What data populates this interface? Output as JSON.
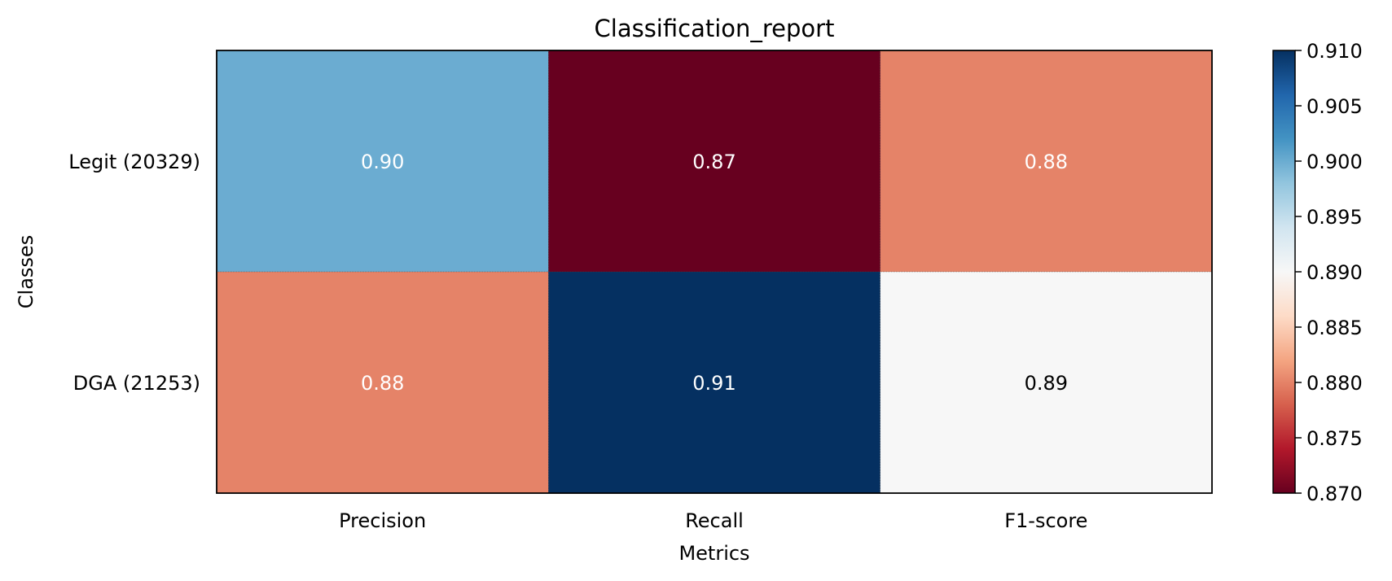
{
  "chart_data": {
    "type": "heatmap",
    "title": "Classification_report",
    "xlabel": "Metrics",
    "ylabel": "Classes",
    "x_categories": [
      "Precision",
      "Recall",
      "F1-score"
    ],
    "y_categories": [
      "Legit (20329)",
      "DGA (21253)"
    ],
    "values": [
      [
        0.9,
        0.87,
        0.88
      ],
      [
        0.88,
        0.91,
        0.89
      ]
    ],
    "cell_labels": [
      [
        "0.90",
        "0.87",
        "0.88"
      ],
      [
        "0.88",
        "0.91",
        "0.89"
      ]
    ],
    "colormap": "RdBu",
    "colormap_stops": [
      "#67001f",
      "#b2182b",
      "#d6604d",
      "#f4a582",
      "#fddbc7",
      "#f7f7f7",
      "#d1e5f0",
      "#92c5de",
      "#4393c3",
      "#2166ac",
      "#053061"
    ],
    "colorbar": {
      "range": [
        0.87,
        0.91
      ],
      "ticks": [
        0.87,
        0.875,
        0.88,
        0.885,
        0.89,
        0.895,
        0.9,
        0.905,
        0.91
      ],
      "tick_labels": [
        "0.870",
        "0.875",
        "0.880",
        "0.885",
        "0.890",
        "0.895",
        "0.900",
        "0.905",
        "0.910"
      ]
    },
    "grid": false
  }
}
